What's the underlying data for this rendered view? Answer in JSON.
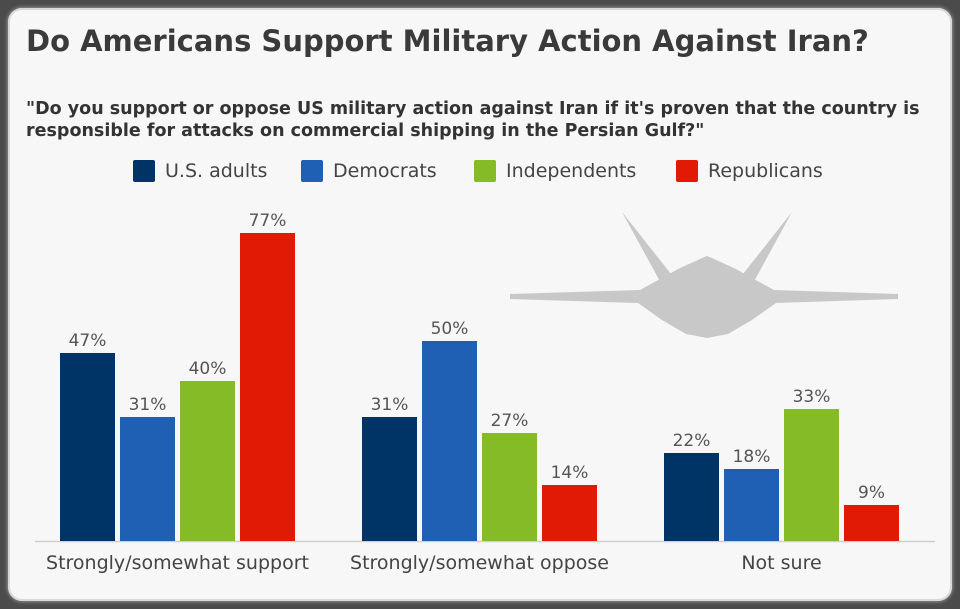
{
  "title": "Do Americans Support Military Action Against Iran?",
  "subtitle": "\"Do you support or oppose US military action against Iran if it's proven that the country is responsible for attacks on commercial shipping in the Persian Gulf?\"",
  "decoration": {
    "icon": "fighter-jet-icon",
    "color": "#c8c8c8"
  },
  "chart_data": {
    "type": "bar",
    "categories": [
      "Strongly/somewhat support",
      "Strongly/somewhat oppose",
      "Not sure"
    ],
    "series": [
      {
        "name": "U.S. adults",
        "color": "#003366",
        "values": [
          47,
          31,
          22
        ],
        "labels": [
          "47%",
          "31%",
          "22%"
        ]
      },
      {
        "name": "Democrats",
        "color": "#1f5fb4",
        "values": [
          31,
          50,
          18
        ],
        "labels": [
          "31%",
          "50%",
          "18%"
        ]
      },
      {
        "name": "Independents",
        "color": "#86bb28",
        "values": [
          40,
          27,
          33
        ],
        "labels": [
          "40%",
          "27%",
          "33%"
        ]
      },
      {
        "name": "Republicans",
        "color": "#e01a05",
        "values": [
          77,
          14,
          9
        ],
        "labels": [
          "77%",
          "14%",
          "9%"
        ]
      }
    ],
    "unit": "%",
    "ylim": [
      0,
      80
    ],
    "grid": false,
    "legend": "top-center",
    "title": "Do Americans Support Military Action Against Iran?",
    "xlabel": "",
    "ylabel": ""
  }
}
